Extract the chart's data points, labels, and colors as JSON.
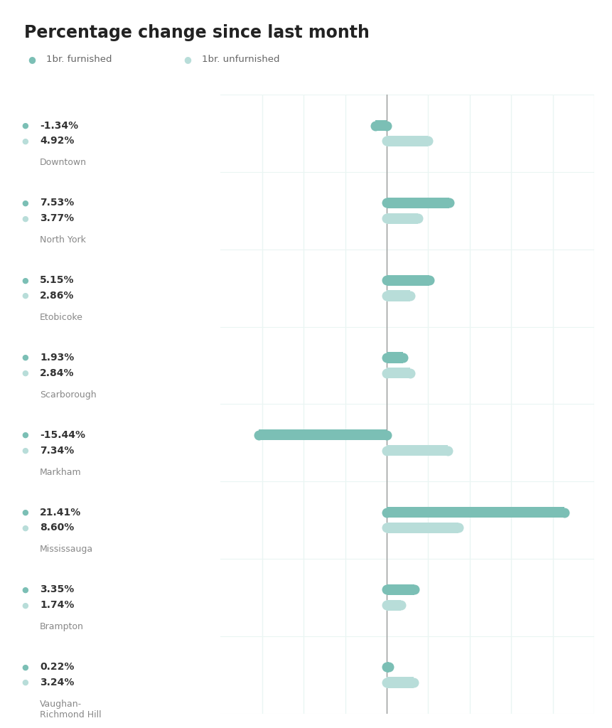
{
  "title": "Percentage change since last month",
  "legend_furnished": "1br. furnished",
  "legend_unfurnished": "1br. unfurnished",
  "categories": [
    "Downtown",
    "North York",
    "Etobicoke",
    "Scarborough",
    "Markham",
    "Mississauga",
    "Brampton",
    "Vaughan-\nRichmond Hill"
  ],
  "furnished_values": [
    -1.34,
    7.53,
    5.15,
    1.93,
    -15.44,
    21.41,
    3.35,
    0.22
  ],
  "unfurnished_values": [
    4.92,
    3.77,
    2.86,
    2.84,
    7.34,
    8.6,
    1.74,
    3.24
  ],
  "furnished_labels": [
    "-1.34%",
    "7.53%",
    "5.15%",
    "1.93%",
    "-15.44%",
    "21.41%",
    "3.35%",
    "0.22%"
  ],
  "unfurnished_labels": [
    "4.92%",
    "3.77%",
    "2.86%",
    "2.84%",
    "7.34%",
    "8.60%",
    "1.74%",
    "3.24%"
  ],
  "furnished_color": "#7bbfb5",
  "unfurnished_color": "#b8ddd9",
  "background_color": "#ffffff",
  "grid_color": "#eaf5f3",
  "zero_line_color": "#999999",
  "title_color": "#222222",
  "label_color": "#333333",
  "city_label_color": "#888888",
  "xlim": [
    -20,
    25
  ],
  "figsize": [
    8.62,
    10.24
  ],
  "dpi": 100
}
